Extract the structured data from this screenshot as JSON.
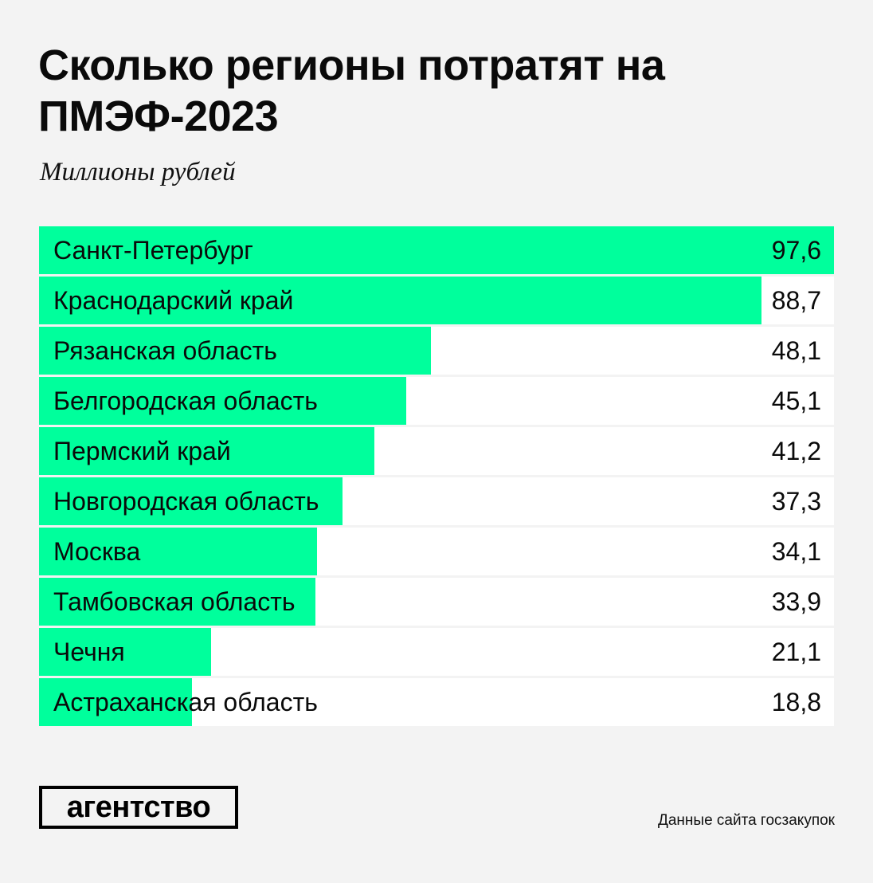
{
  "header": {
    "title": "Сколько регионы потратят на ПМЭФ-2023",
    "subtitle": "Миллионы рублей"
  },
  "colors": {
    "bar": "#00ff9c",
    "row_background": "#ffffff",
    "page_background": "#f3f3f3",
    "text": "#0a0a0a"
  },
  "chart_data": {
    "type": "bar",
    "orientation": "horizontal",
    "title": "Сколько регионы потратят на ПМЭФ-2023",
    "subtitle": "Миллионы рублей",
    "xlabel": "",
    "ylabel": "",
    "unit": "Миллионы рублей",
    "xlim": [
      0,
      97.6
    ],
    "grid": false,
    "legend": "none",
    "categories": [
      "Санкт-Петербург",
      "Краснодарский край",
      "Рязанская область",
      "Белгородская область",
      "Пермский край",
      "Новгородская область",
      "Москва",
      "Тамбовская область",
      "Чечня",
      "Астраханская область"
    ],
    "values": [
      97.6,
      88.7,
      48.1,
      45.1,
      41.2,
      37.3,
      34.1,
      33.9,
      21.1,
      18.8
    ],
    "value_labels": [
      "97,6",
      "88,7",
      "48,1",
      "45,1",
      "41,2",
      "37,3",
      "34,1",
      "33,9",
      "21,1",
      "18,8"
    ]
  },
  "footer": {
    "logo_text": "агентство",
    "source": "Данные сайта госзакупок"
  }
}
